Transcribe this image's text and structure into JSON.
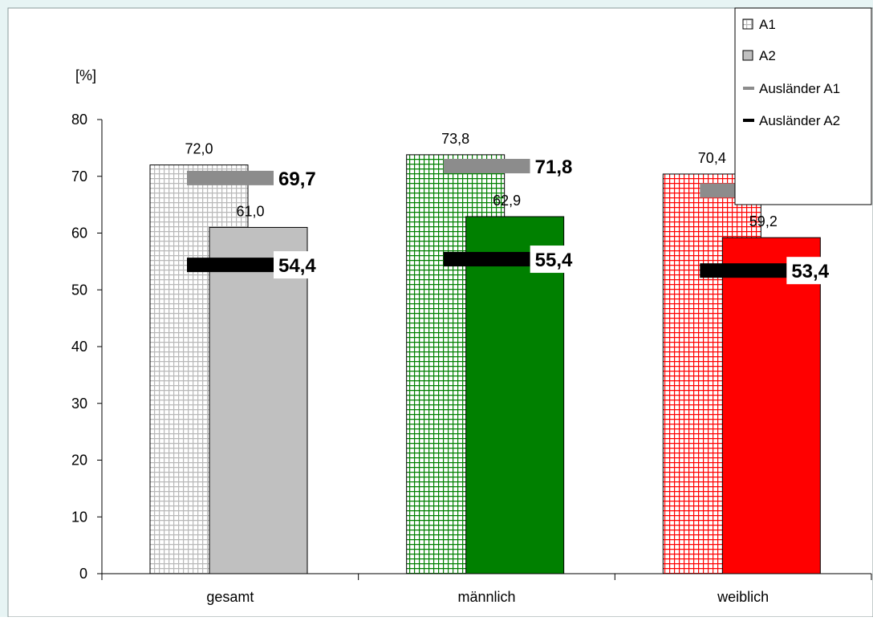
{
  "colors": {
    "frame_bg": "#e7f4f4",
    "frame_border": "#8a9a9a",
    "plot_bg": "#ffffff",
    "axis": "#000000",
    "gray_light": "#c0c0c0",
    "gray_dark": "#8c8c8c",
    "black": "#000000",
    "green": "#008000",
    "red": "#ff0000"
  },
  "chart_data": {
    "type": "bar",
    "title": "",
    "unit_label": "[%]",
    "xlabel": "",
    "ylabel": "",
    "ylim": [
      0,
      80
    ],
    "yticks": [
      0,
      10,
      20,
      30,
      40,
      50,
      60,
      70,
      80
    ],
    "categories": [
      "gesamt",
      "männlich",
      "weiblich"
    ],
    "category_colors": [
      "#c0c0c0",
      "#008000",
      "#ff0000"
    ],
    "series": [
      {
        "name": "A1",
        "kind": "bar",
        "style": "hatched",
        "values": [
          72.0,
          73.8,
          70.4
        ],
        "labels": [
          "72,0",
          "73,8",
          "70,4"
        ]
      },
      {
        "name": "A2",
        "kind": "bar",
        "style": "solid",
        "values": [
          61.0,
          62.9,
          59.2
        ],
        "labels": [
          "61,0",
          "62,9",
          "59,2"
        ]
      },
      {
        "name": "Ausländer A1",
        "kind": "marker",
        "color": "#8c8c8c",
        "values": [
          69.7,
          71.8,
          67.5
        ],
        "labels": [
          "69,7",
          "71,8",
          "67,5"
        ]
      },
      {
        "name": "Ausländer A2",
        "kind": "marker",
        "color": "#000000",
        "values": [
          54.4,
          55.4,
          53.4
        ],
        "labels": [
          "54,4",
          "55,4",
          "53,4"
        ]
      }
    ],
    "legend": {
      "placement": "top-right",
      "entries": [
        {
          "label": "A1",
          "icon": "hatched-square-icon"
        },
        {
          "label": "A2",
          "icon": "gray-square-icon"
        },
        {
          "label": "Ausländer A1",
          "icon": "gray-line-icon"
        },
        {
          "label": "Ausländer A2",
          "icon": "black-line-icon"
        }
      ]
    },
    "grid": false
  }
}
